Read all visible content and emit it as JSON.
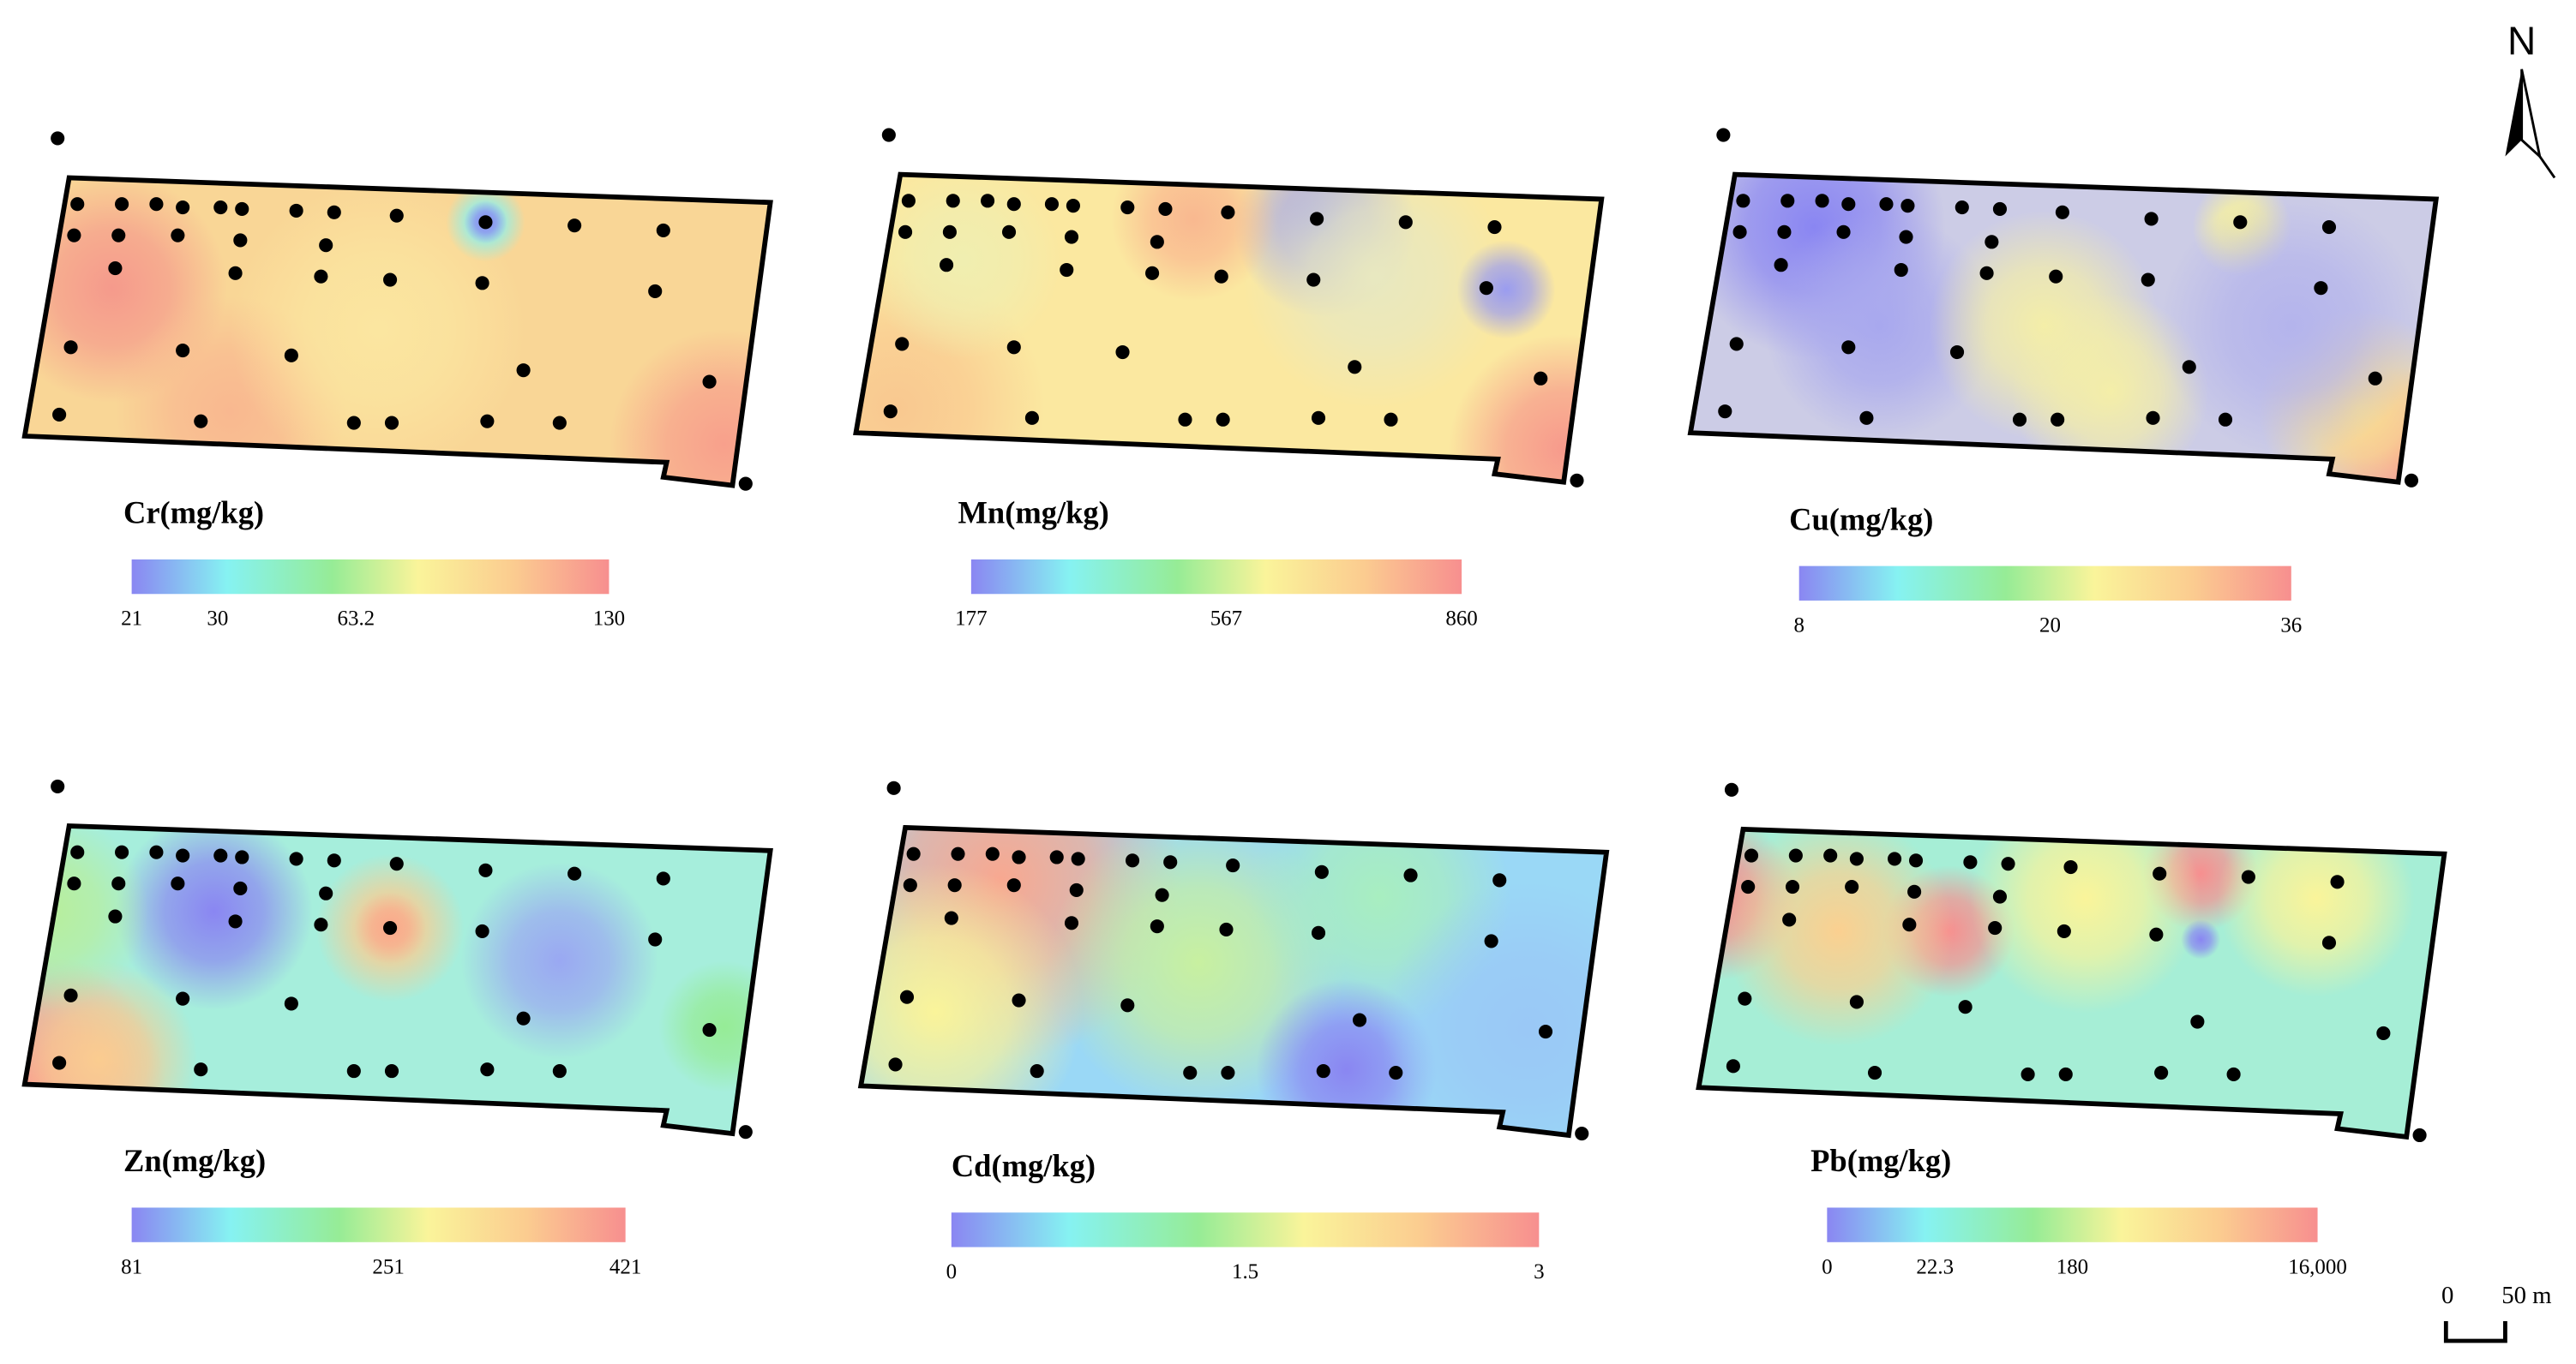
{
  "north": "N",
  "scale_bar": {
    "start": 0,
    "end_label": "50 m"
  },
  "panels": [
    {
      "title": "Cr(mg/kg)",
      "legend_ticks": [
        21,
        30,
        63.2,
        130
      ]
    },
    {
      "title": "Mn(mg/kg)",
      "legend_ticks": [
        177,
        567,
        860
      ]
    },
    {
      "title": "Cu(mg/kg)",
      "legend_ticks": [
        8,
        20,
        36
      ]
    },
    {
      "title": "Zn(mg/kg)",
      "legend_ticks": [
        81,
        251,
        421
      ]
    },
    {
      "title": "Cd(mg/kg)",
      "legend_ticks": [
        0,
        1.5,
        3
      ]
    },
    {
      "title": "Pb(mg/kg)",
      "legend_ticks": [
        0,
        22.3,
        180,
        {
          "value": 16000,
          "label": "16,000"
        }
      ]
    }
  ]
}
